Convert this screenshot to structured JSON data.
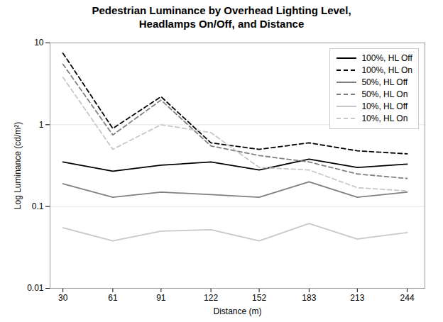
{
  "chart_data": {
    "type": "line",
    "title": "Pedestrian Luminance by Overhead Lighting Level,\nHeadlamps On/Off, and Distance",
    "x_label": "Distance (m)",
    "y_label": "Log Luminance (cd/m²)",
    "x": [
      30,
      61,
      91,
      122,
      152,
      183,
      213,
      244
    ],
    "series": [
      {
        "name": "100%, HL Off",
        "color": "#000000",
        "line_style": "solid",
        "values": [
          0.35,
          0.27,
          0.32,
          0.35,
          0.28,
          0.38,
          0.3,
          0.33
        ]
      },
      {
        "name": "100%, HL On",
        "color": "#000000",
        "line_style": "dashed",
        "values": [
          7.5,
          0.9,
          2.2,
          0.6,
          0.5,
          0.6,
          0.48,
          0.44
        ]
      },
      {
        "name": "50%, HL Off",
        "color": "#808080",
        "line_style": "solid",
        "values": [
          0.19,
          0.13,
          0.15,
          0.14,
          0.13,
          0.2,
          0.13,
          0.15
        ]
      },
      {
        "name": "50%, HL On",
        "color": "#808080",
        "line_style": "dashed",
        "values": [
          5.5,
          0.75,
          2.0,
          0.55,
          0.42,
          0.35,
          0.25,
          0.22
        ]
      },
      {
        "name": "10%, HL Off",
        "color": "#c8c8c8",
        "line_style": "solid",
        "values": [
          0.055,
          0.038,
          0.05,
          0.052,
          0.038,
          0.062,
          0.04,
          0.048
        ]
      },
      {
        "name": "10%, HL On",
        "color": "#c8c8c8",
        "line_style": "dashed",
        "values": [
          3.8,
          0.5,
          1.0,
          0.8,
          0.3,
          0.28,
          0.17,
          0.155
        ]
      }
    ],
    "xlim": [
      22,
      255
    ],
    "xticks": [
      30,
      61,
      91,
      122,
      152,
      183,
      213,
      244
    ],
    "ylim": [
      0.01,
      10
    ],
    "yticks": [
      0.01,
      0.1,
      1,
      10
    ],
    "log": "y",
    "grid": "y",
    "legend": "upper right"
  }
}
